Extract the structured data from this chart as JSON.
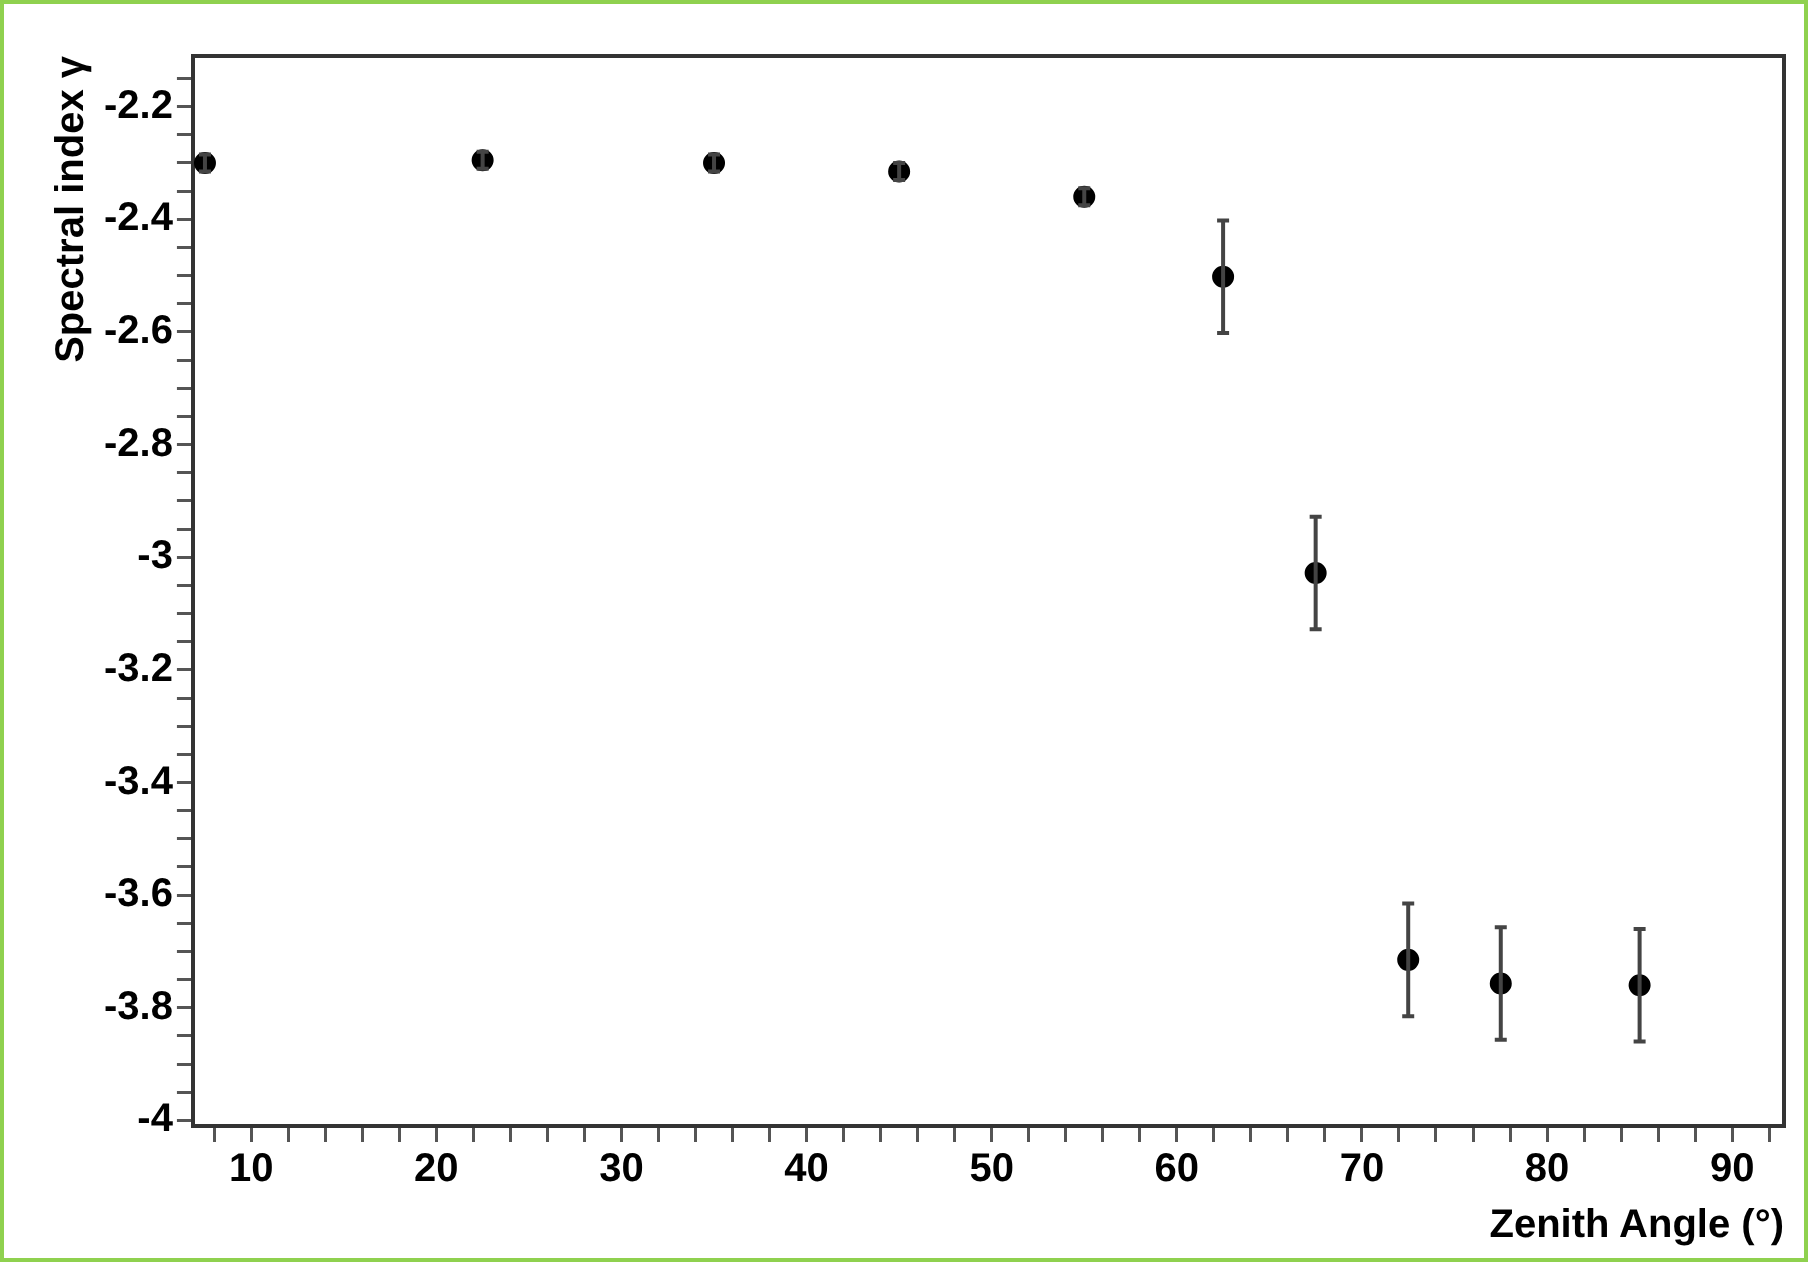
{
  "chart_data": {
    "type": "scatter",
    "xlabel": "Zenith Angle (°)",
    "ylabel": "Spectral index γ",
    "x": [
      7.5,
      22.5,
      35,
      45,
      55,
      62.5,
      67.5,
      72.5,
      77.5,
      85
    ],
    "values": [
      -2.3,
      -2.295,
      -2.3,
      -2.315,
      -2.36,
      -2.502,
      -3.028,
      -3.715,
      -3.757,
      -3.76
    ],
    "errors": [
      0.015,
      0.015,
      0.015,
      0.015,
      0.015,
      0.1,
      0.1,
      0.1,
      0.1,
      0.1
    ],
    "color": "#000000",
    "marker": "circle",
    "grid": false,
    "legend": false,
    "xlim": [
      6.85,
      92.8
    ],
    "ylim": [
      -4.01,
      -2.11
    ],
    "xticks": [
      {
        "value": 8,
        "label": null
      },
      10,
      {
        "value": 12,
        "label": null
      },
      {
        "value": 14,
        "label": null
      },
      {
        "value": 16,
        "label": null
      },
      {
        "value": 18,
        "label": null
      },
      20,
      {
        "value": 22,
        "label": null
      },
      {
        "value": 24,
        "label": null
      },
      {
        "value": 26,
        "label": null
      },
      {
        "value": 28,
        "label": null
      },
      30,
      {
        "value": 32,
        "label": null
      },
      {
        "value": 34,
        "label": null
      },
      {
        "value": 36,
        "label": null
      },
      {
        "value": 38,
        "label": null
      },
      40,
      {
        "value": 42,
        "label": null
      },
      {
        "value": 44,
        "label": null
      },
      {
        "value": 46,
        "label": null
      },
      {
        "value": 48,
        "label": null
      },
      50,
      {
        "value": 52,
        "label": null
      },
      {
        "value": 54,
        "label": null
      },
      {
        "value": 56,
        "label": null
      },
      {
        "value": 58,
        "label": null
      },
      60,
      {
        "value": 62,
        "label": null
      },
      {
        "value": 64,
        "label": null
      },
      {
        "value": 66,
        "label": null
      },
      {
        "value": 68,
        "label": null
      },
      70,
      {
        "value": 72,
        "label": null
      },
      {
        "value": 74,
        "label": null
      },
      {
        "value": 76,
        "label": null
      },
      {
        "value": 78,
        "label": null
      },
      80,
      {
        "value": 82,
        "label": null
      },
      {
        "value": 84,
        "label": null
      },
      {
        "value": 86,
        "label": null
      },
      {
        "value": 88,
        "label": null
      },
      90,
      {
        "value": 92,
        "label": null
      }
    ],
    "yticks": [
      -4,
      {
        "value": -3.95,
        "label": null
      },
      {
        "value": -3.9,
        "label": null
      },
      {
        "value": -3.85,
        "label": null
      },
      -3.8,
      {
        "value": -3.75,
        "label": null
      },
      {
        "value": -3.7,
        "label": null
      },
      {
        "value": -3.65,
        "label": null
      },
      -3.6,
      {
        "value": -3.55,
        "label": null
      },
      {
        "value": -3.5,
        "label": null
      },
      {
        "value": -3.45,
        "label": null
      },
      -3.4,
      {
        "value": -3.35,
        "label": null
      },
      {
        "value": -3.3,
        "label": null
      },
      {
        "value": -3.25,
        "label": null
      },
      -3.2,
      {
        "value": -3.15,
        "label": null
      },
      {
        "value": -3.1,
        "label": null
      },
      {
        "value": -3.05,
        "label": null
      },
      -3,
      {
        "value": -2.95,
        "label": null
      },
      {
        "value": -2.9,
        "label": null
      },
      {
        "value": -2.85,
        "label": null
      },
      -2.8,
      {
        "value": -2.75,
        "label": null
      },
      {
        "value": -2.7,
        "label": null
      },
      {
        "value": -2.65,
        "label": null
      },
      -2.6,
      {
        "value": -2.55,
        "label": null
      },
      {
        "value": -2.5,
        "label": null
      },
      {
        "value": -2.45,
        "label": null
      },
      -2.4,
      {
        "value": -2.35,
        "label": null
      },
      {
        "value": -2.3,
        "label": null
      },
      {
        "value": -2.25,
        "label": null
      },
      -2.2,
      {
        "value": -2.15,
        "label": null
      }
    ]
  }
}
